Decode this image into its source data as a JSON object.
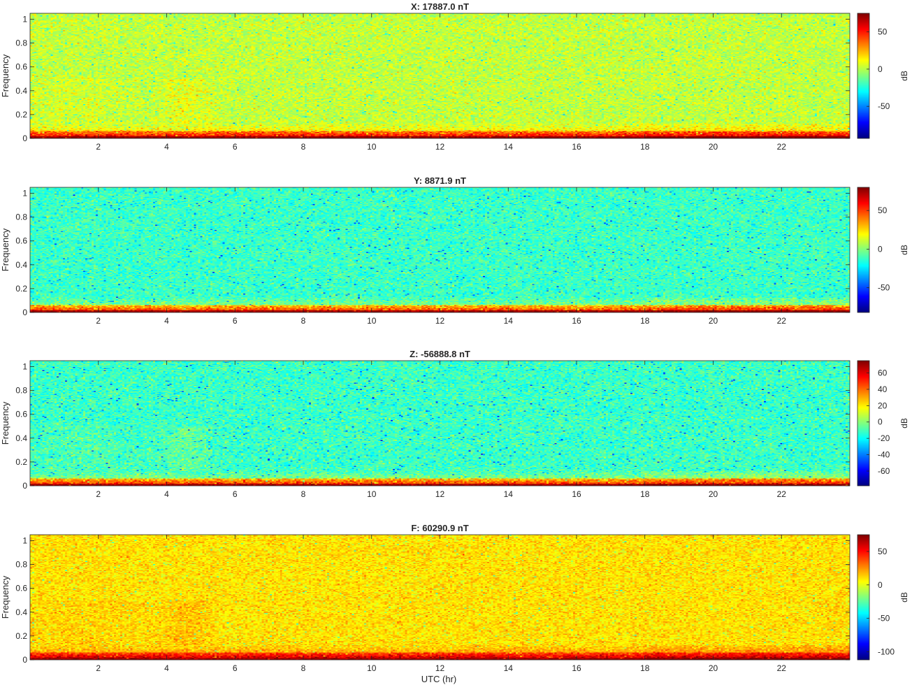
{
  "figure": {
    "xlabel": "UTC (hr)"
  },
  "chart_data": [
    {
      "type": "heatmap",
      "title": "X: 17887.0 nT",
      "ylabel": "Frequency",
      "colorbar_label": "dB",
      "xlim": [
        0,
        24
      ],
      "ylim": [
        0,
        1.05
      ],
      "xticks": [
        2,
        4,
        6,
        8,
        10,
        12,
        14,
        16,
        18,
        20,
        22
      ],
      "yticks": [
        0,
        0.2,
        0.4,
        0.6,
        0.8,
        1
      ],
      "color_limits": [
        -93,
        75
      ],
      "colorbar_ticks": [
        -50,
        0,
        50
      ],
      "noise_floor_db": 2,
      "base_band_db": 75,
      "low_band_db": 32,
      "pattern": "broadband background with strong low-frequency band near 0; enhanced activity 0-5 UTC around 0.2-0.45 frequency"
    },
    {
      "type": "heatmap",
      "title": "Y: 8871.9 nT",
      "ylabel": "Frequency",
      "colorbar_label": "dB",
      "xlim": [
        0,
        24
      ],
      "ylim": [
        0,
        1.05
      ],
      "xticks": [
        2,
        4,
        6,
        8,
        10,
        12,
        14,
        16,
        18,
        20,
        22
      ],
      "yticks": [
        0,
        0.2,
        0.4,
        0.6,
        0.8,
        1
      ],
      "color_limits": [
        -82,
        80
      ],
      "colorbar_ticks": [
        -50,
        0,
        50
      ],
      "noise_floor_db": -12,
      "base_band_db": 78,
      "low_band_db": 28,
      "pattern": "broadband background with strong low-frequency band near 0; slight enhancement after 18 UTC"
    },
    {
      "type": "heatmap",
      "title": "Z: -56888.8 nT",
      "ylabel": "Frequency",
      "colorbar_label": "dB",
      "xlim": [
        0,
        24
      ],
      "ylim": [
        0,
        1.05
      ],
      "xticks": [
        2,
        4,
        6,
        8,
        10,
        12,
        14,
        16,
        18,
        20,
        22
      ],
      "yticks": [
        0,
        0.2,
        0.4,
        0.6,
        0.8,
        1
      ],
      "color_limits": [
        -78,
        75
      ],
      "colorbar_ticks": [
        -60,
        -40,
        -20,
        0,
        20,
        40,
        60
      ],
      "noise_floor_db": -12,
      "base_band_db": 72,
      "low_band_db": 26,
      "pattern": "broadband background with strong low-frequency band near 0; enhanced activity 0-5 UTC"
    },
    {
      "type": "heatmap",
      "title": "F: 60290.9 nT",
      "ylabel": "Frequency",
      "colorbar_label": "dB",
      "xlim": [
        0,
        24
      ],
      "ylim": [
        0,
        1.05
      ],
      "xticks": [
        2,
        4,
        6,
        8,
        10,
        12,
        14,
        16,
        18,
        20,
        22
      ],
      "yticks": [
        0,
        0.2,
        0.4,
        0.6,
        0.8,
        1
      ],
      "color_limits": [
        -112,
        75
      ],
      "colorbar_ticks": [
        -100,
        -50,
        0,
        50
      ],
      "noise_floor_db": 10,
      "base_band_db": 72,
      "low_band_db": 38,
      "pattern": "elevated broadband background with strong low-frequency band near 0; enhanced activity 0-5 UTC"
    }
  ]
}
